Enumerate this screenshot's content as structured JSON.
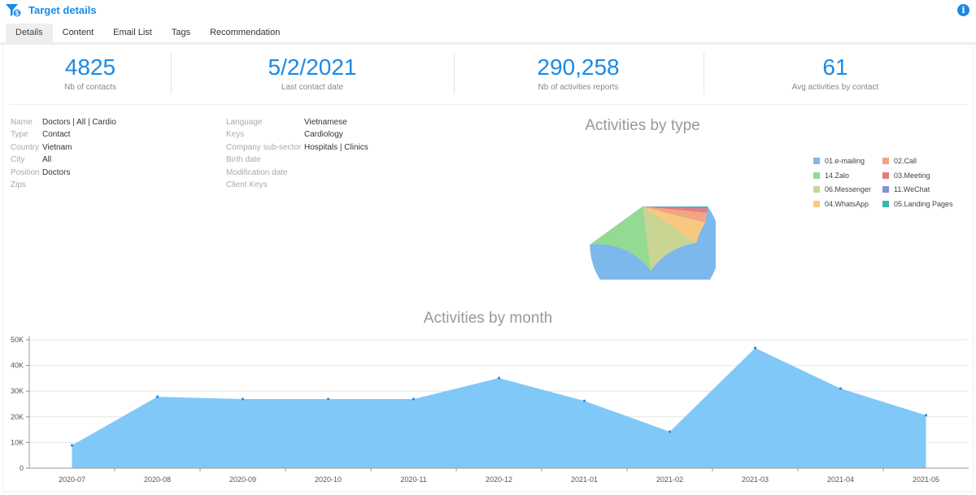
{
  "header": {
    "title": "Target details",
    "logo_icon": "filter-dollar-icon",
    "info_icon": "info-icon",
    "info_glyph": "i"
  },
  "tabs": [
    {
      "label": "Details",
      "active": true
    },
    {
      "label": "Content"
    },
    {
      "label": "Email List"
    },
    {
      "label": "Tags"
    },
    {
      "label": "Recommendation"
    }
  ],
  "stats": [
    {
      "value": "4825",
      "label": "Nb of contacts"
    },
    {
      "value": "5/2/2021",
      "label": "Last contact date"
    },
    {
      "value": "290,258",
      "label": "Nb of activities reports"
    },
    {
      "value": "61",
      "label": "Avg activities by contact"
    }
  ],
  "details_left": [
    {
      "key": "Name",
      "value": "Doctors | All | Cardio"
    },
    {
      "key": "Type",
      "value": "Contact"
    },
    {
      "key": "Country",
      "value": "Vietnam"
    },
    {
      "key": "City",
      "value": "All"
    },
    {
      "key": "Position",
      "value": "Doctors"
    },
    {
      "key": "Zips",
      "value": ""
    }
  ],
  "details_right": [
    {
      "key": "Language",
      "value": "Vietnamese"
    },
    {
      "key": "Keys",
      "value": "Cardiology"
    },
    {
      "key": "Company sub-sector",
      "value": "Hospitals | Clinics"
    },
    {
      "key": "Birth date",
      "value": ""
    },
    {
      "key": "Modification date",
      "value": ""
    },
    {
      "key": "Client Keys",
      "value": ""
    }
  ],
  "chart_data": [
    {
      "type": "pie",
      "title": "Activities by type",
      "legend": "right",
      "categories": [
        "01.e-mailing",
        "14.Zalo",
        "06.Messenger",
        "04.WhatsApp",
        "02.Call",
        "03.Meeting",
        "11.WeChat",
        "05.Landing Pages"
      ],
      "values": [
        60,
        17,
        13.5,
        5.5,
        2.5,
        1,
        0.3,
        0.2
      ],
      "colors": [
        "#7cb8ec",
        "#94da92",
        "#c9d592",
        "#f9c880",
        "#f2a582",
        "#e57c7c",
        "#8093d8",
        "#3db4b4"
      ],
      "unit": "percent (estimated)"
    },
    {
      "type": "area",
      "title": "Activities by month",
      "xlabel": "",
      "ylabel": "",
      "categories": [
        "2020-07",
        "2020-08",
        "2020-09",
        "2020-10",
        "2020-11",
        "2020-12",
        "2021-01",
        "2021-02",
        "2021-03",
        "2021-04",
        "2021-05"
      ],
      "values": [
        8900,
        27800,
        26900,
        26900,
        26900,
        35100,
        26200,
        14200,
        46800,
        31000,
        20600
      ],
      "ylim": [
        0,
        50000
      ],
      "yticks": [
        "0",
        "10K",
        "20K",
        "30K",
        "40K",
        "50K"
      ],
      "grid": true,
      "color": "#80c8f8"
    }
  ]
}
